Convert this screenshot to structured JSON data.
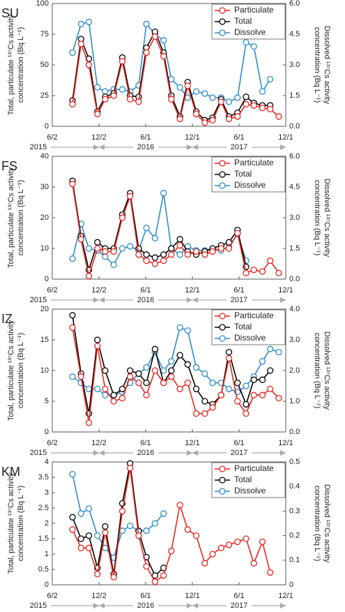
{
  "chart_data": [
    {
      "type": "line",
      "label": "SU",
      "ylabel": [
        "Total, particulate ¹³⁷Cs activity",
        "concentration (Bq L⁻¹)"
      ],
      "y2label": [
        "Dissolved ¹³⁷Cs activity",
        "concentration (Bq L⁻¹)"
      ],
      "year_labels": [
        "2015",
        "2016",
        "2017"
      ],
      "xlim": [
        0,
        30
      ],
      "xticks": [
        {
          "value": 0,
          "label": "6/2"
        },
        {
          "value": 6,
          "label": "12/2"
        },
        {
          "value": 12,
          "label": "6/1"
        },
        {
          "value": 18,
          "label": "12/1"
        },
        {
          "value": 24,
          "label": "6/1"
        },
        {
          "value": 30,
          "label": "12/1"
        }
      ],
      "ylim": [
        0,
        100
      ],
      "yticks": [
        0,
        25,
        50,
        75,
        100
      ],
      "y2lim": [
        0,
        6
      ],
      "y2ticks": [
        {
          "value": 0,
          "label": "0.0"
        },
        {
          "value": 1.5,
          "label": "1.5"
        },
        {
          "value": 3,
          "label": "3.0"
        },
        {
          "value": 4.5,
          "label": "4.5"
        },
        {
          "value": 6,
          "label": "6.0"
        }
      ],
      "legend": "upper right",
      "x": [
        2.6,
        3.7,
        4.7,
        5.8,
        6.8,
        7.9,
        9.0,
        10.0,
        11.1,
        12.1,
        13.2,
        14.3,
        15.3,
        16.4,
        17.4,
        18.5,
        19.6,
        20.6,
        21.7,
        22.7,
        23.8,
        24.9,
        25.9,
        27.0,
        28.0,
        29.1
      ],
      "series": [
        {
          "name": "Particulate",
          "color": "#e8251f",
          "values": [
            18,
            67,
            50,
            10,
            22,
            25,
            53,
            22,
            20,
            60,
            73,
            57,
            22,
            6,
            33,
            10,
            3,
            5,
            20,
            6,
            8,
            18,
            17,
            15,
            14,
            8
          ]
        },
        {
          "name": "Total",
          "color": "#000000",
          "values": [
            21,
            71,
            55,
            12,
            24,
            27,
            56,
            25,
            24,
            64,
            77,
            60,
            25,
            8,
            36,
            12,
            5,
            7,
            22,
            8,
            11,
            24,
            19,
            17,
            17,
            null
          ]
        },
        {
          "name": "Dissolve",
          "color": "#2e8bc9",
          "axis": "y2",
          "values": [
            3.6,
            5.0,
            5.1,
            1.9,
            1.7,
            1.8,
            1.8,
            1.7,
            2.0,
            5.0,
            4.5,
            4.2,
            2.3,
            1.9,
            1.4,
            1.7,
            1.6,
            1.4,
            1.4,
            1.2,
            1.4,
            4.1,
            3.9,
            1.7,
            2.3,
            null
          ]
        }
      ]
    },
    {
      "type": "line",
      "label": "FS",
      "ylabel": [
        "Total, particulate ¹³⁷Cs activity",
        "concentration (Bq L⁻¹)"
      ],
      "y2label": [
        "Dissolved ¹³⁷Cs activity",
        "concentration (Bq L⁻¹)"
      ],
      "year_labels": [
        "2015",
        "2016",
        "2017"
      ],
      "xlim": [
        0,
        30
      ],
      "xticks": [
        {
          "value": 0,
          "label": "6/2"
        },
        {
          "value": 6,
          "label": "12/2"
        },
        {
          "value": 12,
          "label": "6/1"
        },
        {
          "value": 18,
          "label": "12/1"
        },
        {
          "value": 24,
          "label": "6/1"
        },
        {
          "value": 30,
          "label": "12/1"
        }
      ],
      "ylim": [
        0,
        40
      ],
      "yticks": [
        0,
        10,
        20,
        30,
        40
      ],
      "y2lim": [
        0,
        6
      ],
      "y2ticks": [
        {
          "value": 0,
          "label": "0.0"
        },
        {
          "value": 1.5,
          "label": "1.5"
        },
        {
          "value": 3,
          "label": "3.0"
        },
        {
          "value": 4.5,
          "label": "4.5"
        },
        {
          "value": 6,
          "label": "6.0"
        }
      ],
      "legend": "upper right",
      "x": [
        2.6,
        3.7,
        4.7,
        5.8,
        6.8,
        7.9,
        9.0,
        10.0,
        11.1,
        12.1,
        13.2,
        14.3,
        15.3,
        16.4,
        17.4,
        18.5,
        19.6,
        20.6,
        21.7,
        22.7,
        23.8,
        24.9,
        25.9,
        27.0,
        28.0,
        29.1
      ],
      "series": [
        {
          "name": "Particulate",
          "color": "#e8251f",
          "values": [
            31,
            13,
            1,
            10,
            9,
            9,
            20,
            27,
            8,
            6,
            5,
            6,
            8,
            11,
            8,
            9,
            8,
            9,
            10,
            10,
            15,
            2,
            3,
            2.5,
            6,
            2
          ]
        },
        {
          "name": "Total",
          "color": "#000000",
          "values": [
            32,
            14,
            3,
            12,
            10,
            10,
            21,
            28,
            10,
            8,
            7,
            8,
            10,
            13,
            9,
            8,
            9,
            10,
            11,
            12,
            16,
            4,
            null,
            null,
            null,
            null
          ]
        },
        {
          "name": "Dissolve",
          "color": "#2e8bc9",
          "axis": "y2",
          "values": [
            1.0,
            2.7,
            1.5,
            1.4,
            1.1,
            0.7,
            1.5,
            1.6,
            1.4,
            2.5,
            2.0,
            4.2,
            1.5,
            1.2,
            1.6,
            1.4,
            1.4,
            1.5,
            1.4,
            1.6,
            2.2,
            0.9,
            null,
            null,
            null,
            null
          ]
        }
      ]
    },
    {
      "type": "line",
      "label": "IZ",
      "ylabel": [
        "Total, particulate ¹³⁷Cs activity",
        "concentration (Bq L⁻¹)"
      ],
      "y2label": [
        "Dissolved ¹³⁷Cs activity",
        "concentration (Bq L⁻¹)"
      ],
      "year_labels": [
        "2015",
        "2016",
        "2017"
      ],
      "xlim": [
        0,
        30
      ],
      "xticks": [
        {
          "value": 0,
          "label": "6/2"
        },
        {
          "value": 6,
          "label": "12/2"
        },
        {
          "value": 12,
          "label": "6/1"
        },
        {
          "value": 18,
          "label": "12/1"
        },
        {
          "value": 24,
          "label": "6/1"
        },
        {
          "value": 30,
          "label": "12/1"
        }
      ],
      "ylim": [
        0,
        20
      ],
      "yticks": [
        0,
        5,
        10,
        15,
        20
      ],
      "y2lim": [
        0,
        4
      ],
      "y2ticks": [
        {
          "value": 0,
          "label": "0.0"
        },
        {
          "value": 1,
          "label": "1.0"
        },
        {
          "value": 2,
          "label": "2.0"
        },
        {
          "value": 3,
          "label": "3.0"
        },
        {
          "value": 4,
          "label": "4.0"
        }
      ],
      "legend": "upper right",
      "x": [
        2.6,
        3.7,
        4.7,
        5.8,
        6.8,
        7.9,
        9.0,
        10.0,
        11.1,
        12.1,
        13.2,
        14.3,
        15.3,
        16.4,
        17.4,
        18.5,
        19.6,
        20.6,
        21.7,
        22.7,
        23.8,
        24.9,
        25.9,
        27.0,
        28.0,
        29.1
      ],
      "series": [
        {
          "name": "Particulate",
          "color": "#e8251f",
          "values": [
            17,
            9,
            1.5,
            14,
            7,
            5,
            5.5,
            9,
            8,
            6,
            10,
            8,
            9,
            7,
            8,
            3,
            3,
            4,
            6,
            12,
            5,
            3,
            6,
            6,
            7,
            5.5
          ]
        },
        {
          "name": "Total",
          "color": "#000000",
          "values": [
            19,
            9.5,
            3,
            15,
            10,
            6,
            7,
            10,
            9.5,
            8,
            13.5,
            8,
            10,
            12.5,
            11,
            7,
            5,
            4.5,
            6,
            13,
            8,
            4.5,
            8.5,
            8.5,
            10,
            null
          ]
        },
        {
          "name": "Dissolve",
          "color": "#2e8bc9",
          "axis": "y2",
          "values": [
            1.8,
            1.6,
            1.4,
            1.4,
            1.2,
            1.2,
            1.3,
            1.6,
            1.9,
            2.1,
            2.6,
            2.0,
            2.3,
            3.4,
            3.3,
            2.1,
            1.9,
            1.6,
            1.6,
            1.4,
            1.3,
            1.5,
            1.8,
            2.3,
            2.7,
            2.6
          ]
        }
      ]
    },
    {
      "type": "line",
      "label": "KM",
      "ylabel": [
        "Total, particulate ¹³⁷Cs activity",
        "concentration (Bq L⁻¹)"
      ],
      "y2label": [
        "Dissolved ¹³⁷Cs activity",
        "concentration (Bq L⁻¹)"
      ],
      "year_labels": [
        "2015",
        "2016",
        "2017"
      ],
      "xlim": [
        0,
        30
      ],
      "xticks": [
        {
          "value": 0,
          "label": "6/2"
        },
        {
          "value": 6,
          "label": "12/2"
        },
        {
          "value": 12,
          "label": "6/1"
        },
        {
          "value": 18,
          "label": "12/1"
        },
        {
          "value": 24,
          "label": "6/1"
        },
        {
          "value": 30,
          "label": "12/1"
        }
      ],
      "ylim": [
        0,
        4
      ],
      "yticks": [
        0,
        0.5,
        1,
        1.5,
        2,
        2.5,
        3,
        3.5,
        4
      ],
      "y2lim": [
        0,
        0.5
      ],
      "y2ticks": [
        0,
        0.1,
        0.2,
        0.3,
        0.4,
        0.5
      ],
      "legend": "upper right",
      "x": [
        2.6,
        3.7,
        4.7,
        5.8,
        6.8,
        7.9,
        9.0,
        10.0,
        11.1,
        12.1,
        13.2,
        14.3,
        15.3,
        16.4,
        17.4,
        18.5,
        19.6,
        20.6,
        21.7,
        22.7,
        23.8,
        24.9,
        25.9,
        27.0,
        28.0,
        29.1
      ],
      "series": [
        {
          "name": "Particulate",
          "color": "#e8251f",
          "values": [
            1.8,
            1.2,
            1.2,
            0.35,
            1.7,
            0.25,
            2.4,
            3.8,
            1.6,
            0.6,
            0.1,
            0.3,
            1.1,
            2.6,
            1.8,
            1.6,
            0.7,
            1.0,
            1.2,
            1.3,
            1.4,
            1.5,
            0.7,
            1.4,
            0.4,
            null
          ]
        },
        {
          "name": "Total",
          "color": "#000000",
          "values": [
            2.2,
            1.5,
            1.6,
            0.55,
            1.9,
            0.35,
            2.65,
            3.95,
            1.75,
            0.9,
            0.3,
            0.55,
            null,
            null,
            null,
            null,
            null,
            null,
            null,
            null,
            null,
            null,
            null,
            null,
            null,
            null
          ]
        },
        {
          "name": "Dissolve",
          "color": "#2e8bc9",
          "axis": "y2",
          "values": [
            0.45,
            0.29,
            0.31,
            0.2,
            0.15,
            0.11,
            0.22,
            0.24,
            0.22,
            0.22,
            0.25,
            0.29,
            null,
            null,
            null,
            null,
            null,
            null,
            null,
            null,
            null,
            null,
            null,
            null,
            null,
            null
          ]
        }
      ]
    }
  ]
}
